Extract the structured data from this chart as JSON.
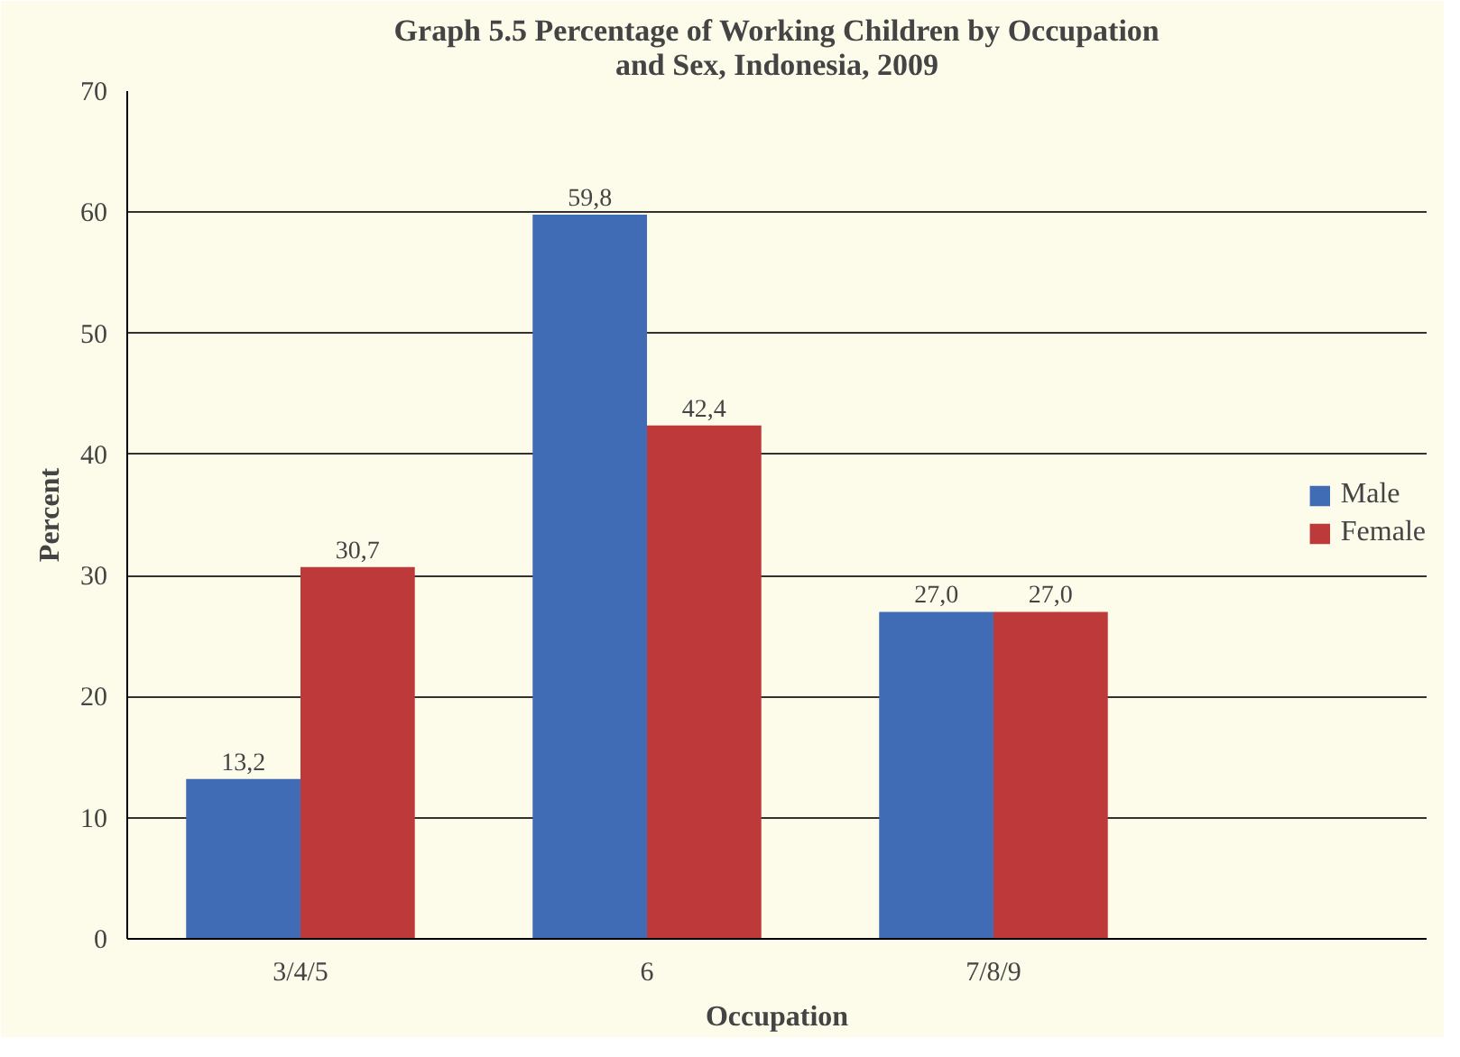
{
  "chart_data": {
    "type": "bar",
    "title": "Graph 5.5 Percentage of Working Children by Occupation\nand Sex, Indonesia, 2009",
    "xlabel": "Occupation",
    "ylabel": "Percent",
    "categories": [
      "3/4/5",
      "6",
      "7/8/9"
    ],
    "series": [
      {
        "name": "Male",
        "color": "#3f6cb4",
        "values": [
          13.2,
          59.8,
          27.0
        ],
        "value_labels": [
          "13,2",
          "59,8",
          "27,0"
        ]
      },
      {
        "name": "Female",
        "color": "#be3a3a",
        "values": [
          30.7,
          42.4,
          27.0
        ],
        "value_labels": [
          "30,7",
          "42,4",
          "27,0"
        ]
      }
    ],
    "ylim": [
      0,
      70
    ],
    "yticks": [
      0,
      10,
      20,
      30,
      40,
      50,
      60,
      70
    ],
    "grid": "y",
    "legend": "right"
  }
}
